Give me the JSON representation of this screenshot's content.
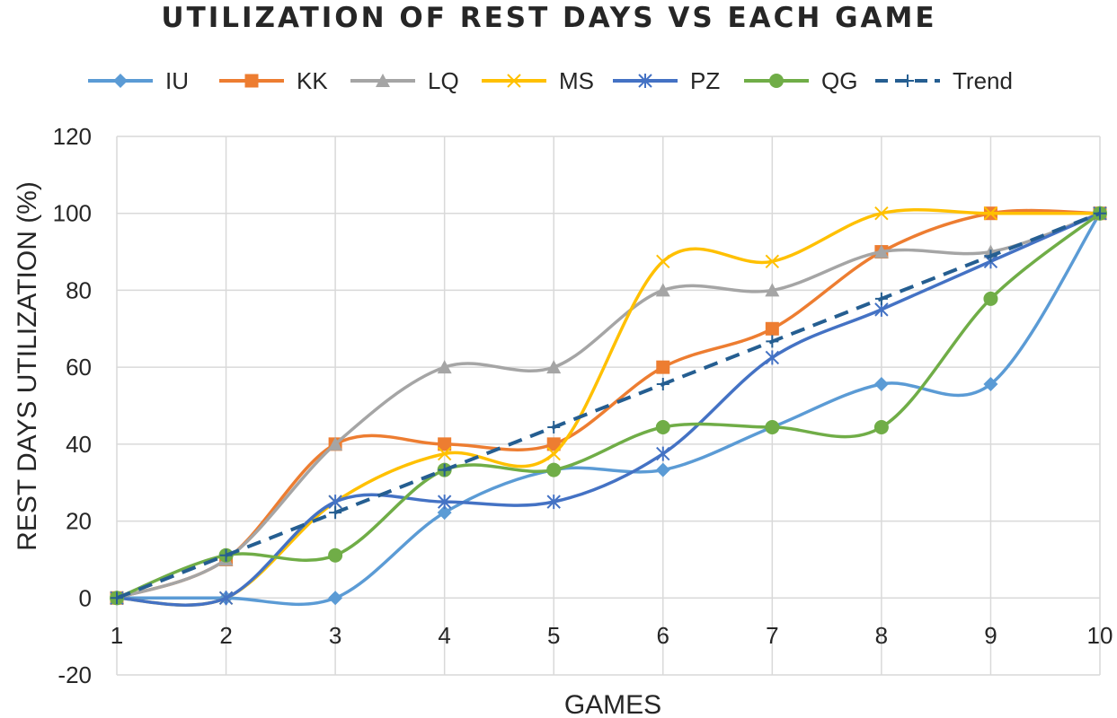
{
  "chart_data": {
    "type": "line",
    "title": "UTILIZATION OF REST DAYS VS EACH GAME",
    "xlabel": "GAMES",
    "ylabel": "REST DAYS UTILIZATION (%)",
    "x": [
      1,
      2,
      3,
      4,
      5,
      6,
      7,
      8,
      9,
      10
    ],
    "xticks": [
      "1",
      "2",
      "3",
      "4",
      "5",
      "6",
      "7",
      "8",
      "9",
      "10"
    ],
    "ylim": [
      -20,
      120
    ],
    "yticks": [
      "-20",
      "0",
      "20",
      "40",
      "60",
      "80",
      "100",
      "120"
    ],
    "grid": true,
    "legend_position": "top",
    "smooth": true,
    "series": [
      {
        "name": "IU",
        "color": "#5b9bd5",
        "marker": "diamond",
        "dashed": false,
        "values": [
          0,
          0,
          0,
          22.2,
          33.3,
          33.3,
          44.4,
          55.6,
          55.6,
          100
        ]
      },
      {
        "name": "KK",
        "color": "#ed7d31",
        "marker": "square",
        "dashed": false,
        "values": [
          0,
          10,
          40,
          40,
          40,
          60,
          70,
          90,
          100,
          100
        ]
      },
      {
        "name": "LQ",
        "color": "#a5a5a5",
        "marker": "triangle",
        "dashed": false,
        "values": [
          0,
          10,
          40,
          60,
          60,
          80,
          80,
          90,
          90,
          100
        ]
      },
      {
        "name": "MS",
        "color": "#ffc000",
        "marker": "x",
        "dashed": false,
        "values": [
          0,
          0,
          25,
          37.5,
          37.5,
          87.5,
          87.5,
          100,
          100,
          100
        ]
      },
      {
        "name": "PZ",
        "color": "#4472c4",
        "marker": "star",
        "dashed": false,
        "values": [
          0,
          0,
          25,
          25,
          25,
          37.5,
          62.5,
          75,
          87.5,
          100
        ]
      },
      {
        "name": "QG",
        "color": "#70ad47",
        "marker": "circle",
        "dashed": false,
        "values": [
          0,
          11.1,
          11.1,
          33.3,
          33.3,
          44.4,
          44.4,
          44.4,
          77.8,
          100
        ]
      },
      {
        "name": "Trend",
        "color": "#255e91",
        "marker": "plus",
        "dashed": true,
        "values": [
          0,
          11.1,
          22.2,
          33.3,
          44.4,
          55.6,
          66.7,
          77.8,
          88.9,
          100
        ]
      }
    ]
  }
}
